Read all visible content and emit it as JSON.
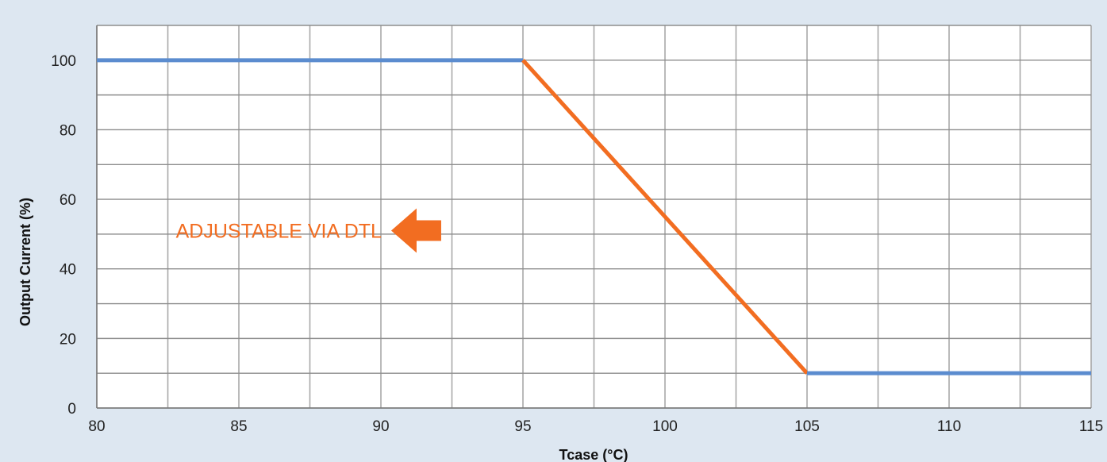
{
  "chart_data": {
    "type": "line",
    "xlabel": "Tcase (°C)",
    "ylabel": "Output Current (%)",
    "xlim": [
      80,
      115
    ],
    "ylim": [
      0,
      110
    ],
    "x_ticks": [
      80,
      85,
      90,
      95,
      100,
      105,
      110,
      115
    ],
    "x_minor_step": 2.5,
    "y_ticks": [
      0,
      20,
      40,
      60,
      80,
      100
    ],
    "grid": true,
    "series": [
      {
        "color": "#5b8ccf",
        "x": [
          80,
          95
        ],
        "y": [
          100,
          100
        ]
      },
      {
        "color": "#f26d21",
        "x": [
          95,
          105
        ],
        "y": [
          100,
          10
        ]
      },
      {
        "color": "#5b8ccf",
        "x": [
          105,
          115
        ],
        "y": [
          10,
          10
        ]
      }
    ],
    "annotations": [
      {
        "text": "ADJUSTABLE VIA DTL",
        "color": "#f26d21",
        "arrow": "left",
        "at_x": 91.2,
        "at_y": 51
      }
    ]
  }
}
